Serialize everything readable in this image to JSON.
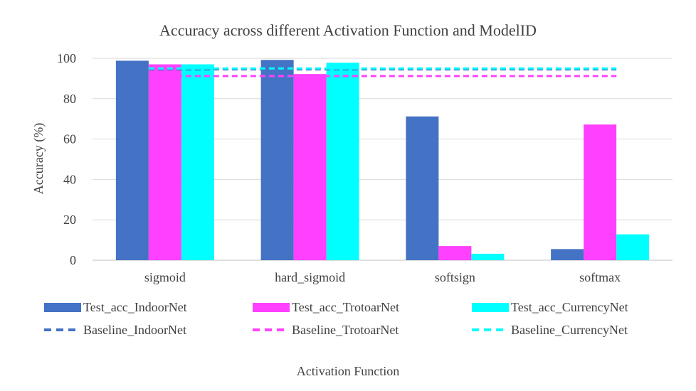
{
  "chart_data": {
    "type": "bar",
    "title": "Accuracy across different Activation Function and ModelID",
    "xlabel": "Activation Function",
    "ylabel": "Accuracy (%)",
    "ylim": [
      0,
      100
    ],
    "yticks": [
      0,
      20,
      40,
      60,
      80,
      100
    ],
    "grid": true,
    "legend_position": "bottom",
    "categories": [
      "sigmoid",
      "hard_sigmoid",
      "softsign",
      "softmax"
    ],
    "series": [
      {
        "name": "Test_acc_IndoorNet",
        "color": "#4472c4",
        "values": [
          98.8,
          99.2,
          71.2,
          5.5
        ]
      },
      {
        "name": "Test_acc_TrotoarNet",
        "color": "#ff40ff",
        "values": [
          97.0,
          92.2,
          7.0,
          67.2
        ]
      },
      {
        "name": "Test_acc_CurrencyNet",
        "color": "#00ffff",
        "values": [
          97.0,
          97.8,
          3.2,
          12.8
        ]
      }
    ],
    "baselines": [
      {
        "name": "Baseline_IndoorNet",
        "color": "#4472c4",
        "value": 94.5
      },
      {
        "name": "Baseline_TrotoarNet",
        "color": "#ff40ff",
        "value": 91.2
      },
      {
        "name": "Baseline_CurrencyNet",
        "color": "#00ffff",
        "value": 95.0
      }
    ]
  }
}
